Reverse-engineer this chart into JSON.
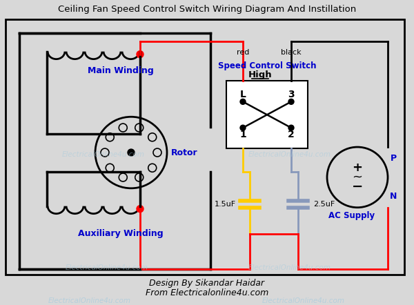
{
  "title": "Ceiling Fan Speed Control Switch Wiring Diagram And Instillation",
  "bg_color": "#d8d8d8",
  "label_main_winding": "Main Winding",
  "label_aux_winding": "Auxiliary Winding",
  "label_rotor": "Rotor",
  "label_speed_switch": "Speed Control Switch",
  "label_high": "High",
  "label_ac_supply": "AC Supply",
  "label_15uf": "1.5uF",
  "label_25uf": "2.5uF",
  "label_red": "red",
  "label_black": "black",
  "label_L": "L",
  "label_3": "3",
  "label_1": "1",
  "label_2": "2",
  "label_P": "P",
  "label_N": "N",
  "label_plus": "+",
  "label_minus": "−",
  "watermark": "ElectricalOnline4u.com",
  "footer1": "Design By Sikandar Haidar",
  "footer2": "From Electricalonline4u.com",
  "blue": "#0000cc",
  "red": "#ff0000",
  "yellow": "#ffcc00",
  "gray_blue": "#8899bb",
  "light_blue_wm": "#aaccdd"
}
